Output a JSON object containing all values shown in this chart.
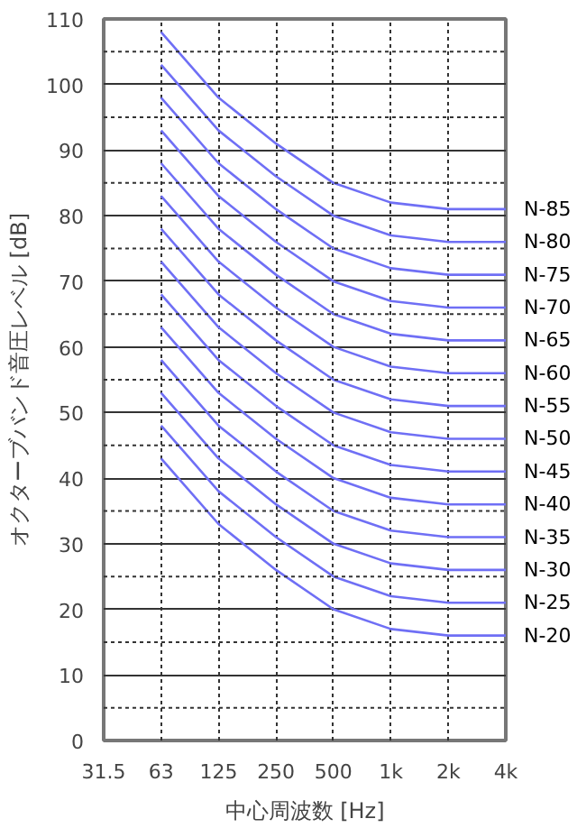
{
  "chart_data": {
    "type": "line",
    "xlabel": "中心周波数 [Hz]",
    "ylabel": "オクターブバンド音圧レベル [dB]",
    "categories": [
      "31.5",
      "63",
      "125",
      "250",
      "500",
      "1k",
      "2k",
      "4k"
    ],
    "ylim": [
      0,
      110
    ],
    "yticks": [
      0,
      {
        "value": 5,
        "label": null
      },
      10,
      {
        "value": 15,
        "label": null
      },
      20,
      {
        "value": 25,
        "label": null
      },
      30,
      {
        "value": 35,
        "label": null
      },
      40,
      {
        "value": 45,
        "label": null
      },
      50,
      {
        "value": 55,
        "label": null
      },
      60,
      {
        "value": 65,
        "label": null
      },
      70,
      {
        "value": 75,
        "label": null
      },
      80,
      {
        "value": 85,
        "label": null
      },
      90,
      {
        "value": 95,
        "label": null
      },
      100,
      {
        "value": 105,
        "label": null
      },
      110
    ],
    "grid": true,
    "marker": "none",
    "line_style": "solid",
    "series": [
      {
        "name": "N-85",
        "color": "#6f6ff5",
        "values": [
          null,
          108,
          98,
          91,
          85,
          82,
          81,
          81
        ]
      },
      {
        "name": "N-80",
        "color": "#6f6ff5",
        "values": [
          null,
          103,
          93,
          86,
          80,
          77,
          76,
          76
        ]
      },
      {
        "name": "N-75",
        "color": "#6f6ff5",
        "values": [
          null,
          98,
          88,
          81,
          75,
          72,
          71,
          71
        ]
      },
      {
        "name": "N-70",
        "color": "#6f6ff5",
        "values": [
          null,
          93,
          83,
          76,
          70,
          67,
          66,
          66
        ]
      },
      {
        "name": "N-65",
        "color": "#6f6ff5",
        "values": [
          null,
          88,
          78,
          71,
          65,
          62,
          61,
          61
        ]
      },
      {
        "name": "N-60",
        "color": "#6f6ff5",
        "values": [
          null,
          83,
          73,
          66,
          60,
          57,
          56,
          56
        ]
      },
      {
        "name": "N-55",
        "color": "#6f6ff5",
        "values": [
          null,
          78,
          68,
          61,
          55,
          52,
          51,
          51
        ]
      },
      {
        "name": "N-50",
        "color": "#6f6ff5",
        "values": [
          null,
          73,
          63,
          56,
          50,
          47,
          46,
          46
        ]
      },
      {
        "name": "N-45",
        "color": "#6f6ff5",
        "values": [
          null,
          68,
          58,
          51,
          45,
          42,
          41,
          41
        ]
      },
      {
        "name": "N-40",
        "color": "#6f6ff5",
        "values": [
          null,
          63,
          53,
          46,
          40,
          37,
          36,
          36
        ]
      },
      {
        "name": "N-35",
        "color": "#6f6ff5",
        "values": [
          null,
          58,
          48,
          41,
          35,
          32,
          31,
          31
        ]
      },
      {
        "name": "N-30",
        "color": "#6f6ff5",
        "values": [
          null,
          53,
          43,
          36,
          30,
          27,
          26,
          26
        ]
      },
      {
        "name": "N-25",
        "color": "#6f6ff5",
        "values": [
          null,
          48,
          38,
          31,
          25,
          22,
          21,
          21
        ]
      },
      {
        "name": "N-20",
        "color": "#6f6ff5",
        "values": [
          null,
          43,
          33,
          26,
          20,
          17,
          16,
          16
        ]
      }
    ]
  }
}
